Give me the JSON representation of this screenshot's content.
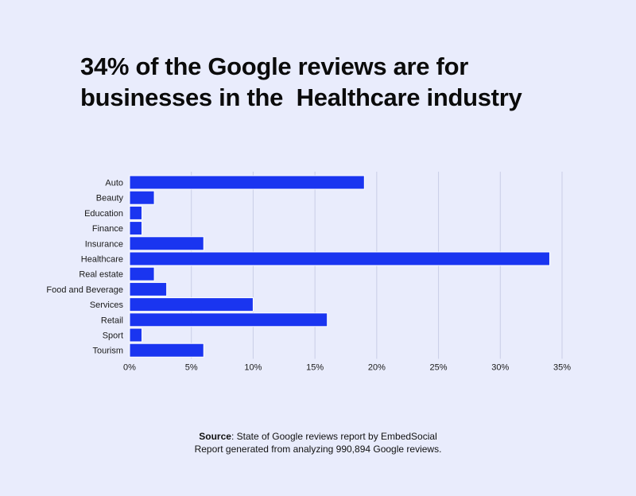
{
  "title": {
    "line1": "34% of the Google reviews are for",
    "line2": "businesses in the  Healthcare industry"
  },
  "colors": {
    "background": "#e9ecfc",
    "bar": "#1a35f0",
    "bar_outline": "#ffffff",
    "grid": "#c9cde6",
    "text": "#0b0b0b"
  },
  "chart_data": {
    "type": "bar",
    "orientation": "horizontal",
    "categories": [
      "Auto",
      "Beauty",
      "Education",
      "Finance",
      "Insurance",
      "Healthcare",
      "Real estate",
      "Food and Beverage",
      "Services",
      "Retail",
      "Sport",
      "Tourism"
    ],
    "values": [
      19,
      2,
      1,
      1,
      6,
      34,
      2,
      3,
      10,
      16,
      1,
      6
    ],
    "xticks": [
      "0%",
      "5%",
      "10%",
      "15%",
      "20%",
      "25%",
      "30%",
      "35%"
    ],
    "xlim": [
      0,
      35
    ],
    "grid": "vertical",
    "legend": "none"
  },
  "footer": {
    "source_label": "Source",
    "source_text": ": State of Google reviews report by EmbedSocial",
    "note": "Report generated from analyzing 990,894 Google reviews."
  }
}
